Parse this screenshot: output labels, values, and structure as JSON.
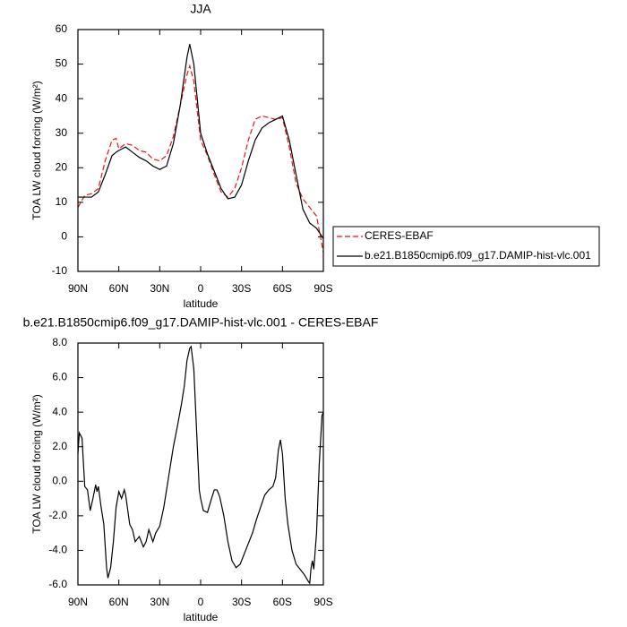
{
  "chart_data": [
    {
      "type": "line",
      "title": "JJA",
      "xlabel": "latitude",
      "ylabel": "TOA LW cloud forcing (W/m²)",
      "xlim": [
        90,
        -90
      ],
      "ylim": [
        -10,
        60
      ],
      "xticks": [
        {
          "value": 90,
          "label": "90N"
        },
        {
          "value": 60,
          "label": "60N"
        },
        {
          "value": 30,
          "label": "30N"
        },
        0,
        {
          "value": -30,
          "label": "30S"
        },
        {
          "value": -60,
          "label": "60S"
        },
        {
          "value": -90,
          "label": "90S"
        }
      ],
      "yticks": [
        -10,
        0,
        10,
        20,
        30,
        40,
        50,
        60
      ],
      "legend": "outside-right",
      "x": [
        90,
        85,
        80,
        75,
        70,
        65,
        62,
        60,
        55,
        50,
        45,
        40,
        35,
        30,
        25,
        20,
        15,
        10,
        8,
        5,
        0,
        -5,
        -10,
        -15,
        -20,
        -25,
        -30,
        -35,
        -40,
        -45,
        -50,
        -55,
        -60,
        -65,
        -70,
        -75,
        -80,
        -85,
        -90
      ],
      "series": [
        {
          "name": "CERES-EBAF",
          "color": "#e8141c",
          "linestyle": "dashed",
          "values": [
            8.5,
            12,
            12.5,
            14,
            22,
            28,
            28.5,
            25.5,
            27,
            26.5,
            25,
            24.5,
            22.5,
            22,
            23.5,
            29,
            38,
            47,
            49.5,
            45,
            28,
            23.5,
            18,
            13,
            11.5,
            14,
            20,
            28,
            34,
            35,
            34.5,
            34,
            34.5,
            26,
            15.5,
            11,
            8.5,
            6,
            -4.5
          ]
        },
        {
          "name": "b.e21.B1850cmip6.f09_g17.DAMIP-hist-vlc.001",
          "color": "#000000",
          "linestyle": "solid",
          "values": [
            11.5,
            11.5,
            11.5,
            13,
            18,
            23.5,
            24.5,
            25,
            26,
            24.5,
            23,
            22,
            20.5,
            19.5,
            20.5,
            27,
            38,
            52,
            55.8,
            50,
            30,
            24,
            19,
            14,
            11,
            11.5,
            15,
            22,
            28,
            31.5,
            33,
            34,
            35,
            28,
            18,
            8,
            4,
            2.5,
            -0.5
          ]
        }
      ]
    },
    {
      "type": "line",
      "title": "b.e21.B1850cmip6.f09_g17.DAMIP-hist-vlc.001 - CERES-EBAF",
      "xlabel": "latitude",
      "ylabel": "TOA LW cloud forcing (W/m²)",
      "xlim": [
        90,
        -90
      ],
      "ylim": [
        -6,
        8
      ],
      "xticks": [
        {
          "value": 90,
          "label": "90N"
        },
        {
          "value": 60,
          "label": "60N"
        },
        {
          "value": 30,
          "label": "30N"
        },
        0,
        {
          "value": -30,
          "label": "30S"
        },
        {
          "value": -60,
          "label": "60S"
        },
        {
          "value": -90,
          "label": "90S"
        }
      ],
      "yticks": [
        {
          "value": -6,
          "label": "-6.0"
        },
        {
          "value": -4,
          "label": "-4.0"
        },
        {
          "value": -2,
          "label": "-2.0"
        },
        {
          "value": 0,
          "label": "0.0"
        },
        {
          "value": 2,
          "label": "2.0"
        },
        {
          "value": 4,
          "label": "4.0"
        },
        {
          "value": 6,
          "label": "6.0"
        },
        {
          "value": 8,
          "label": "8.0"
        }
      ],
      "color": "#000000",
      "x": [
        90,
        89,
        87,
        85,
        83,
        81,
        79,
        77,
        76,
        75,
        73,
        71,
        69,
        68,
        66,
        64,
        62,
        60,
        58,
        56,
        55,
        52,
        50,
        48,
        45,
        42,
        40,
        38,
        35,
        33,
        30,
        27,
        24,
        20,
        17,
        14,
        12,
        10,
        8,
        7,
        5,
        3,
        1,
        0,
        -2,
        -5,
        -8,
        -10,
        -12,
        -14,
        -17,
        -20,
        -23,
        -26,
        -29,
        -32,
        -35,
        -38,
        -41,
        -44,
        -47,
        -50,
        -53,
        -55,
        -57,
        -58.5,
        -60,
        -62,
        -64,
        -67,
        -70,
        -73,
        -76,
        -79,
        -80,
        -81,
        -82,
        -83,
        -85,
        -87,
        -89,
        -90
      ],
      "values": [
        1.6,
        2.8,
        2.5,
        -0.3,
        -0.5,
        -1.7,
        -1.0,
        -0.2,
        -0.6,
        -0.3,
        -1.5,
        -2.5,
        -5.0,
        -5.6,
        -5.0,
        -3.5,
        -1.5,
        -0.6,
        -1.0,
        -0.5,
        -0.8,
        -2.5,
        -2.8,
        -3.5,
        -3.2,
        -3.8,
        -3.5,
        -2.8,
        -3.5,
        -3.0,
        -2.6,
        -1.5,
        0.0,
        2.0,
        3.2,
        4.5,
        5.5,
        7.0,
        7.7,
        7.8,
        6.5,
        3.0,
        -0.5,
        -1.0,
        -1.7,
        -1.8,
        -1.0,
        -0.5,
        -0.5,
        -0.9,
        -2.0,
        -3.5,
        -4.6,
        -5.0,
        -4.8,
        -4.2,
        -3.6,
        -3.0,
        -2.2,
        -1.5,
        -0.8,
        -0.5,
        -0.3,
        0.2,
        1.8,
        2.4,
        1.6,
        -1.0,
        -2.5,
        -4.0,
        -4.8,
        -5.1,
        -5.4,
        -5.8,
        -5.9,
        -5.0,
        -4.6,
        -5.1,
        -3.0,
        1.0,
        3.8,
        4.0
      ]
    }
  ]
}
